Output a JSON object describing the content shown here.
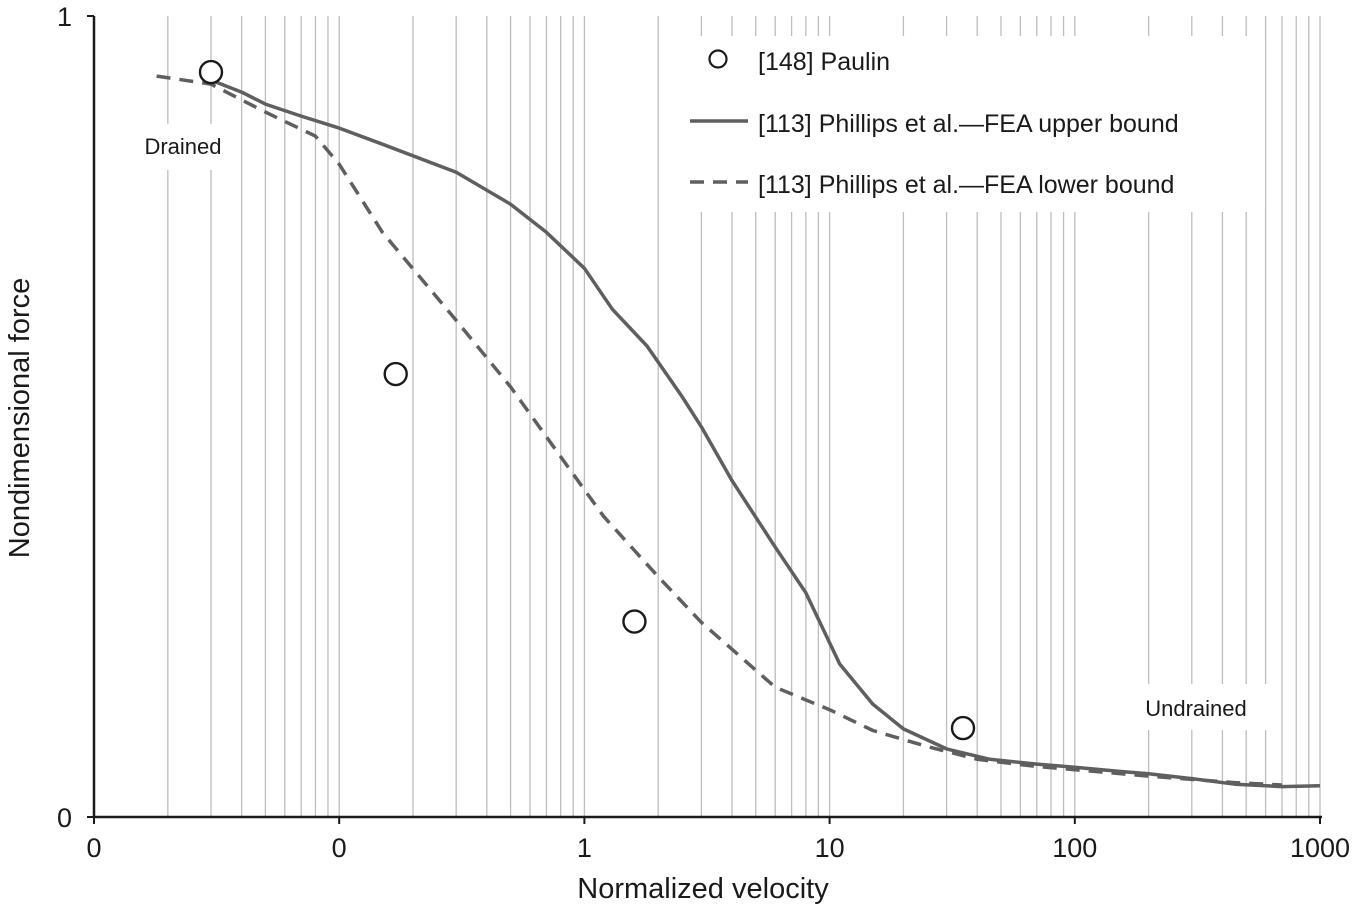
{
  "chart_data": {
    "type": "line",
    "title": "",
    "xlabel": "Normalized velocity",
    "ylabel": "Nondimensional force",
    "x_scale": "log",
    "xlim": [
      0.01,
      1000
    ],
    "ylim": [
      0,
      1
    ],
    "x_ticks": [
      0.01,
      0.1,
      1,
      10,
      100,
      1000
    ],
    "x_tick_labels": [
      "0",
      "0",
      "1",
      "10",
      "100",
      "1000"
    ],
    "y_ticks": [
      0,
      1
    ],
    "y_tick_labels": [
      "0",
      "1"
    ],
    "grid": "vertical minor and major gridlines on log x-axis",
    "legend_position": "top-right",
    "series": [
      {
        "name": "[148] Paulin",
        "style": "markers",
        "marker": "open-circle",
        "color": "#1a1a1a",
        "x": [
          0.03,
          0.17,
          1.6,
          35
        ],
        "y": [
          0.93,
          0.553,
          0.244,
          0.111
        ]
      },
      {
        "name": "[113] Phillips et al.—FEA upper bound",
        "style": "solid",
        "color": "#5f5f5f",
        "x": [
          0.03,
          0.04,
          0.05,
          0.07,
          0.1,
          0.15,
          0.3,
          0.5,
          0.7,
          1,
          1.3,
          1.8,
          2.5,
          3,
          4,
          6,
          8,
          11,
          15,
          20,
          30,
          45,
          70,
          100,
          150,
          200,
          300,
          450,
          700,
          1000
        ],
        "y": [
          0.92,
          0.905,
          0.89,
          0.875,
          0.86,
          0.84,
          0.805,
          0.765,
          0.73,
          0.685,
          0.634,
          0.588,
          0.525,
          0.487,
          0.42,
          0.337,
          0.28,
          0.191,
          0.141,
          0.11,
          0.085,
          0.072,
          0.066,
          0.062,
          0.057,
          0.054,
          0.048,
          0.041,
          0.038,
          0.039
        ]
      },
      {
        "name": "[113] Phillips et al.—FEA lower bound",
        "style": "dashed",
        "color": "#5f5f5f",
        "x": [
          0.018,
          0.03,
          0.05,
          0.08,
          0.1,
          0.15,
          0.3,
          0.5,
          0.8,
          1.2,
          2,
          3,
          6,
          10,
          15,
          25,
          40,
          70,
          100,
          200,
          300,
          450,
          700
        ],
        "y": [
          0.925,
          0.915,
          0.88,
          0.85,
          0.815,
          0.73,
          0.62,
          0.537,
          0.45,
          0.375,
          0.3,
          0.243,
          0.162,
          0.134,
          0.108,
          0.088,
          0.072,
          0.063,
          0.059,
          0.051,
          0.047,
          0.043,
          0.04
        ]
      }
    ],
    "annotations": [
      {
        "text": "Drained",
        "x": 0.025,
        "y": 0.84
      },
      {
        "text": "Undrained",
        "x": 280,
        "y": 0.136
      }
    ]
  }
}
